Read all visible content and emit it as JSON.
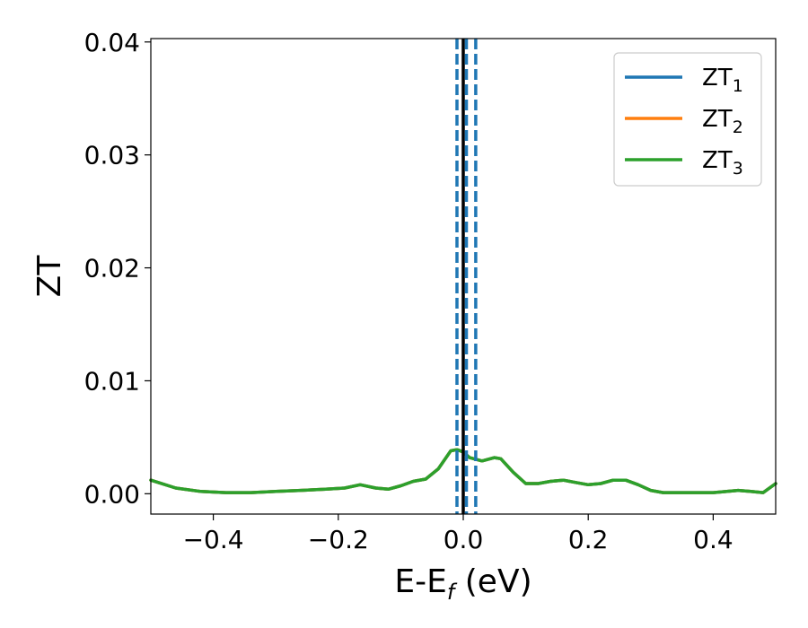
{
  "chart_data": {
    "type": "line",
    "xlabel": {
      "main": "E-E",
      "sub": "f",
      "suffix": " (eV)"
    },
    "ylabel": "ZT",
    "xlim": [
      -0.5,
      0.5
    ],
    "ylim": [
      -0.0018,
      0.0403
    ],
    "xticks": [
      {
        "value": -0.4,
        "label": "−0.4"
      },
      {
        "value": -0.2,
        "label": "−0.2"
      },
      {
        "value": 0.0,
        "label": "0.0"
      },
      {
        "value": 0.2,
        "label": "0.2"
      },
      {
        "value": 0.4,
        "label": "0.4"
      }
    ],
    "yticks": [
      {
        "value": 0.0,
        "label": "0.00"
      },
      {
        "value": 0.01,
        "label": "0.01"
      },
      {
        "value": 0.02,
        "label": "0.02"
      },
      {
        "value": 0.03,
        "label": "0.03"
      },
      {
        "value": 0.04,
        "label": "0.04"
      }
    ],
    "grid": false,
    "legend_position": "top-right",
    "vlines": [
      {
        "x": 0.0,
        "color": "#000000",
        "style": "solid"
      },
      {
        "x": -0.01,
        "color": "#1f77b4",
        "style": "dashed"
      },
      {
        "x": 0.005,
        "color": "#1f77b4",
        "style": "dashed"
      },
      {
        "x": 0.02,
        "color": "#1f77b4",
        "style": "dashed"
      }
    ],
    "x": [
      -0.5,
      -0.46,
      -0.42,
      -0.38,
      -0.34,
      -0.3,
      -0.26,
      -0.22,
      -0.19,
      -0.165,
      -0.14,
      -0.12,
      -0.1,
      -0.08,
      -0.06,
      -0.04,
      -0.02,
      -0.01,
      0.0,
      0.01,
      0.03,
      0.05,
      0.06,
      0.08,
      0.1,
      0.12,
      0.14,
      0.16,
      0.18,
      0.2,
      0.22,
      0.24,
      0.26,
      0.28,
      0.3,
      0.32,
      0.36,
      0.4,
      0.44,
      0.46,
      0.48,
      0.5
    ],
    "series": [
      {
        "name": "ZT",
        "sub": "1",
        "color": "#1f77b4",
        "values": [
          0.0012,
          0.0005,
          0.0002,
          0.0001,
          0.0001,
          0.0002,
          0.0003,
          0.0004,
          0.0005,
          0.0008,
          0.0005,
          0.0004,
          0.0007,
          0.0011,
          0.0013,
          0.0022,
          0.0038,
          0.0039,
          0.0037,
          0.0032,
          0.0029,
          0.0032,
          0.0031,
          0.0019,
          0.0009,
          0.0009,
          0.0011,
          0.0012,
          0.001,
          0.0008,
          0.0009,
          0.0012,
          0.0012,
          0.0008,
          0.0003,
          0.0001,
          0.0001,
          0.0001,
          0.0003,
          0.0002,
          0.0001,
          0.0009
        ]
      },
      {
        "name": "ZT",
        "sub": "2",
        "color": "#ff7f0e",
        "values": [
          0.0012,
          0.0005,
          0.0002,
          0.0001,
          0.0001,
          0.0002,
          0.0003,
          0.0004,
          0.0005,
          0.0008,
          0.0005,
          0.0004,
          0.0007,
          0.0011,
          0.0013,
          0.0022,
          0.0038,
          0.0039,
          0.0037,
          0.0032,
          0.0029,
          0.0032,
          0.0031,
          0.0019,
          0.0009,
          0.0009,
          0.0011,
          0.0012,
          0.001,
          0.0008,
          0.0009,
          0.0012,
          0.0012,
          0.0008,
          0.0003,
          0.0001,
          0.0001,
          0.0001,
          0.0003,
          0.0002,
          0.0001,
          0.0009
        ]
      },
      {
        "name": "ZT",
        "sub": "3",
        "color": "#2ca02c",
        "values": [
          0.0012,
          0.0005,
          0.0002,
          0.0001,
          0.0001,
          0.0002,
          0.0003,
          0.0004,
          0.0005,
          0.0008,
          0.0005,
          0.0004,
          0.0007,
          0.0011,
          0.0013,
          0.0022,
          0.0038,
          0.0039,
          0.0037,
          0.0032,
          0.0029,
          0.0032,
          0.0031,
          0.0019,
          0.0009,
          0.0009,
          0.0011,
          0.0012,
          0.001,
          0.0008,
          0.0009,
          0.0012,
          0.0012,
          0.0008,
          0.0003,
          0.0001,
          0.0001,
          0.0001,
          0.0003,
          0.0002,
          0.0001,
          0.0009
        ]
      }
    ]
  }
}
